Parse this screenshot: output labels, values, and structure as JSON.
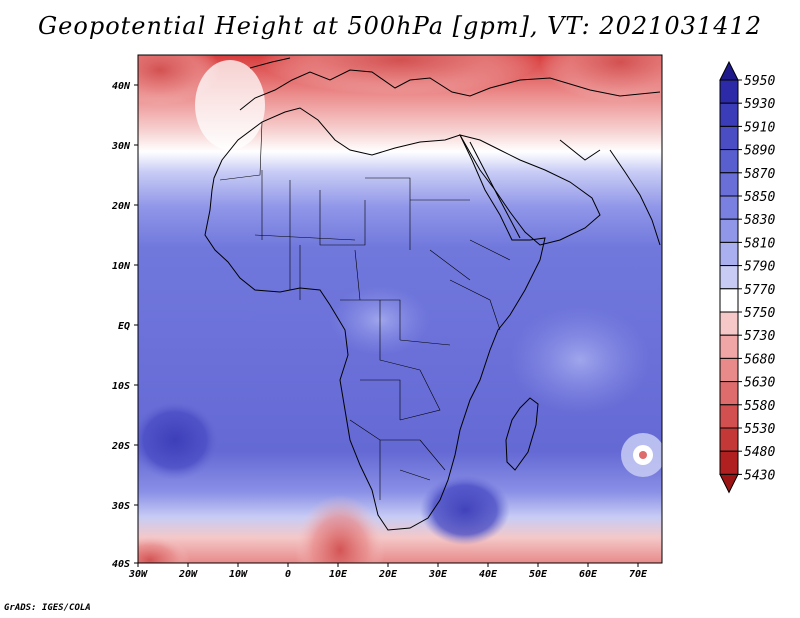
{
  "title": "Geopotential Height at 500hPa [gpm], VT: 2021031412",
  "credit": "GrADS: IGES/COLA",
  "map": {
    "region": "Africa",
    "lon_range": [
      -30,
      75
    ],
    "lat_range": [
      -40,
      45
    ],
    "lat_labels": [
      "40N",
      "30N",
      "20N",
      "10N",
      "EQ",
      "10S",
      "20S",
      "30S",
      "40S"
    ],
    "lon_labels": [
      "30W",
      "20W",
      "10W",
      "0",
      "10E",
      "20E",
      "30E",
      "40E",
      "50E",
      "60E",
      "70E"
    ]
  },
  "colorbar": {
    "levels": [
      "5950",
      "5930",
      "5910",
      "5890",
      "5870",
      "5850",
      "5830",
      "5810",
      "5790",
      "5770",
      "5750",
      "5730",
      "5680",
      "5630",
      "5580",
      "5530",
      "5480",
      "5430"
    ],
    "colors": [
      "#1f1a8c",
      "#2d2aa8",
      "#3b3cb8",
      "#4a4dc4",
      "#5a5fd0",
      "#6a6fd8",
      "#7a80e0",
      "#9096e8",
      "#aab0ef",
      "#c8ccf5",
      "#ffffff",
      "#f6c8c8",
      "#f0a6a6",
      "#e88a8a",
      "#de6c6c",
      "#d25050",
      "#c43838",
      "#b02020",
      "#9c1414"
    ]
  }
}
